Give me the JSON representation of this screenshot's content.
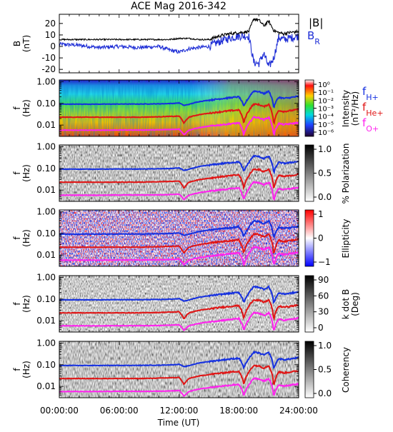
{
  "figure": {
    "title": "ACE Mag 2016-342",
    "x_axis_label": "Time (UT)",
    "x_tick_labels": [
      "00:00:00",
      "06:00:00",
      "12:00:00",
      "18:00:00",
      "24:00:00"
    ],
    "f_axis_label_line1": "f",
    "f_axis_label_line2": "(Hz)",
    "f_tick_labels": [
      "1.00",
      "0.10",
      "0.01"
    ]
  },
  "colors": {
    "B_total": "#000000",
    "B_R": "#1f2fd6",
    "f_H": "#1530e0",
    "f_He": "#e01515",
    "f_O": "#ff22ee"
  },
  "chart_data": [
    {
      "type": "line",
      "panel": "B",
      "ylabel_line1": "B",
      "ylabel_line2": "(nT)",
      "ylim": [
        -23,
        28
      ],
      "y_ticks": [
        20,
        10,
        0,
        -10,
        -20
      ],
      "xlim_hours": [
        0,
        24
      ],
      "legend": [
        "|B|",
        "B_R"
      ],
      "series": [
        {
          "name": "|B|",
          "x": [
            0,
            2,
            4,
            6,
            8,
            10,
            11,
            12,
            13,
            14,
            15,
            16,
            17,
            18,
            19,
            19.5,
            20,
            20.5,
            21,
            21.5,
            22,
            22.5,
            23,
            24
          ],
          "y": [
            6,
            6,
            6,
            6,
            6,
            6,
            6,
            7,
            7,
            6,
            6,
            9,
            11,
            12,
            13,
            24,
            23,
            18,
            22,
            14,
            12,
            11,
            12,
            13
          ]
        },
        {
          "name": "B_R",
          "x": [
            0,
            2,
            4,
            6,
            8,
            10,
            11,
            12,
            13,
            14,
            15,
            16,
            17,
            18,
            19,
            19.5,
            20,
            20.5,
            21,
            21.5,
            22,
            22.5,
            23,
            24
          ],
          "y": [
            2,
            1,
            -1,
            0,
            -1,
            0,
            -3,
            -5,
            -2,
            -1,
            0,
            4,
            7,
            9,
            9,
            -14,
            -15,
            -6,
            -18,
            -10,
            8,
            6,
            7,
            9
          ]
        }
      ]
    },
    {
      "type": "heatmap",
      "panel": "intensity",
      "colorbar_label_line1": "Intensity",
      "colorbar_label_line2": "(nT²/Hz)",
      "colorbar_ticks": [
        "10⁰",
        "10⁻¹",
        "10⁻²",
        "10⁻³",
        "10⁻⁴",
        "10⁻⁵",
        "10⁻⁶"
      ],
      "legend": [
        "f_H+",
        "f_He+",
        "f_O+"
      ]
    },
    {
      "type": "heatmap",
      "panel": "polarization",
      "colorbar_label": "% Polarization",
      "colorbar_ticks": [
        "1.0",
        "0.5",
        "0.0"
      ]
    },
    {
      "type": "heatmap",
      "panel": "ellipticity",
      "colorbar_label": "Ellipticity",
      "colorbar_ticks": [
        "1",
        "0",
        "−1"
      ]
    },
    {
      "type": "heatmap",
      "panel": "kdotb",
      "colorbar_label_line1": "k dot B",
      "colorbar_label_line2": "(Deg)",
      "colorbar_ticks": [
        "90",
        "60",
        "30",
        "0"
      ]
    },
    {
      "type": "heatmap",
      "panel": "coherency",
      "colorbar_label": "Coherency",
      "colorbar_ticks": [
        "1.0",
        "0.5",
        "0.0"
      ]
    },
    {
      "type": "line",
      "panel": "gyrofrequency_overlays",
      "flim_hz": [
        0.003,
        1.2
      ],
      "series": [
        {
          "name": "f_H+",
          "x": [
            0,
            2,
            4,
            6,
            8,
            10,
            11,
            11.5,
            12,
            12.5,
            13,
            14,
            15,
            16,
            17,
            18,
            18.5,
            19,
            19.5,
            20,
            20.5,
            21,
            21.5,
            22,
            22.5,
            23,
            24
          ],
          "y": [
            0.092,
            0.092,
            0.092,
            0.093,
            0.093,
            0.095,
            0.098,
            0.1,
            0.105,
            0.08,
            0.09,
            0.12,
            0.14,
            0.16,
            0.18,
            0.2,
            0.07,
            0.18,
            0.37,
            0.35,
            0.28,
            0.36,
            0.06,
            0.19,
            0.17,
            0.18,
            0.21
          ]
        },
        {
          "name": "f_He+",
          "x": [
            0,
            2,
            4,
            6,
            8,
            10,
            11,
            11.5,
            12,
            12.5,
            13,
            14,
            15,
            16,
            17,
            18,
            18.5,
            19,
            19.5,
            20,
            20.5,
            21,
            21.5,
            22,
            22.5,
            23,
            24
          ],
          "y": [
            0.023,
            0.023,
            0.023,
            0.023,
            0.023,
            0.024,
            0.025,
            0.025,
            0.026,
            0.012,
            0.023,
            0.03,
            0.035,
            0.04,
            0.045,
            0.05,
            0.012,
            0.045,
            0.092,
            0.088,
            0.07,
            0.09,
            0.01,
            0.047,
            0.042,
            0.045,
            0.052
          ]
        },
        {
          "name": "f_O+",
          "x": [
            0,
            2,
            4,
            6,
            8,
            10,
            11,
            11.5,
            12,
            12.5,
            13,
            14,
            15,
            16,
            17,
            18,
            18.5,
            19,
            19.5,
            20,
            20.5,
            21,
            21.5,
            22,
            22.5,
            23,
            24
          ],
          "y": [
            0.0058,
            0.0058,
            0.0058,
            0.0059,
            0.0059,
            0.006,
            0.0062,
            0.0063,
            0.0065,
            0.0035,
            0.0058,
            0.0075,
            0.0088,
            0.01,
            0.0112,
            0.0125,
            0.0035,
            0.0112,
            0.023,
            0.022,
            0.0175,
            0.0225,
            0.0032,
            0.0118,
            0.0105,
            0.0112,
            0.013
          ]
        }
      ]
    }
  ]
}
